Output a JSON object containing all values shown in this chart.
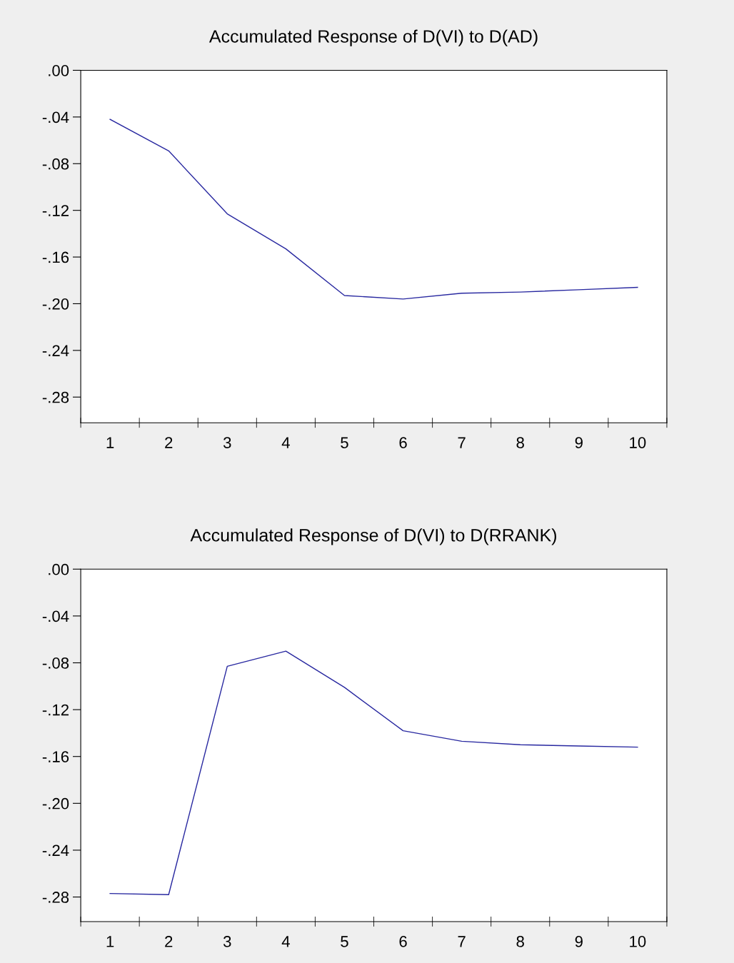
{
  "chart_data": [
    {
      "type": "line",
      "title": "Accumulated Response of D(VI) to D(AD)",
      "categories": [
        "1",
        "2",
        "3",
        "4",
        "5",
        "6",
        "7",
        "8",
        "9",
        "10"
      ],
      "series": [
        {
          "color": "#2828a0",
          "values": [
            -0.042,
            -0.069,
            -0.123,
            -0.153,
            -0.193,
            -0.196,
            -0.191,
            -0.19,
            -0.188,
            -0.186
          ]
        }
      ],
      "ylim": [
        -0.302,
        0
      ],
      "yticks": [
        {
          "value": 0,
          "label": ".00"
        },
        {
          "value": -0.04,
          "label": "-.04"
        },
        {
          "value": -0.08,
          "label": "-.08"
        },
        {
          "value": -0.12,
          "label": "-.12"
        },
        {
          "value": -0.16,
          "label": "-.16"
        },
        {
          "value": -0.2,
          "label": "-.20"
        },
        {
          "value": -0.24,
          "label": "-.24"
        },
        {
          "value": -0.28,
          "label": "-.28"
        }
      ],
      "grid": false,
      "legend": false,
      "marker": "none",
      "line_style": "solid"
    },
    {
      "type": "line",
      "title": "Accumulated Response of D(VI) to D(RRANK)",
      "categories": [
        "1",
        "2",
        "3",
        "4",
        "5",
        "6",
        "7",
        "8",
        "9",
        "10"
      ],
      "series": [
        {
          "color": "#2828a0",
          "values": [
            -0.277,
            -0.278,
            -0.083,
            -0.07,
            -0.101,
            -0.138,
            -0.147,
            -0.15,
            -0.151,
            -0.152
          ]
        }
      ],
      "ylim": [
        -0.301,
        0
      ],
      "yticks": [
        {
          "value": 0,
          "label": ".00"
        },
        {
          "value": -0.04,
          "label": "-.04"
        },
        {
          "value": -0.08,
          "label": "-.08"
        },
        {
          "value": -0.12,
          "label": "-.12"
        },
        {
          "value": -0.16,
          "label": "-.16"
        },
        {
          "value": -0.2,
          "label": "-.20"
        },
        {
          "value": -0.24,
          "label": "-.24"
        },
        {
          "value": -0.28,
          "label": "-.28"
        }
      ],
      "grid": false,
      "legend": false,
      "marker": "none",
      "line_style": "solid"
    }
  ]
}
